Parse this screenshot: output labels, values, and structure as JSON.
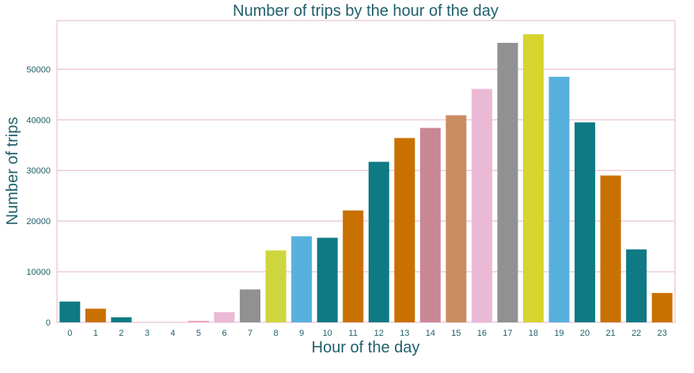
{
  "chart_data": {
    "type": "bar",
    "title": "Number of trips by the hour of the day",
    "xlabel": "Hour of the day",
    "ylabel": "Number of trips",
    "categories": [
      "0",
      "1",
      "2",
      "3",
      "4",
      "5",
      "6",
      "7",
      "8",
      "9",
      "10",
      "11",
      "12",
      "13",
      "14",
      "15",
      "16",
      "17",
      "18",
      "19",
      "20",
      "21",
      "22",
      "23"
    ],
    "values": [
      4100,
      2700,
      1000,
      0,
      0,
      300,
      2000,
      6500,
      14200,
      17000,
      16700,
      22100,
      31700,
      36400,
      38400,
      40900,
      46100,
      55200,
      56900,
      48500,
      39500,
      29000,
      14400,
      5800
    ],
    "colors": [
      "#0e7a83",
      "#c97100",
      "#0e7a83",
      "#0e7a83",
      "#0e7a83",
      "#e9a6b9",
      "#ebb9d6",
      "#919191",
      "#cfd53c",
      "#57b0de",
      "#0e7a83",
      "#c97100",
      "#0e7a83",
      "#c97100",
      "#c98795",
      "#c98d62",
      "#ebb9d6",
      "#919191",
      "#d7d42e",
      "#57b0de",
      "#0e7a83",
      "#c97100",
      "#0e7a83",
      "#c97100"
    ],
    "yticks": [
      0,
      10000,
      20000,
      30000,
      40000,
      50000
    ],
    "ylim": [
      0,
      59600
    ],
    "grid": true,
    "grid_color": "#e5b6c8",
    "text_color": "#1f5f6b"
  }
}
